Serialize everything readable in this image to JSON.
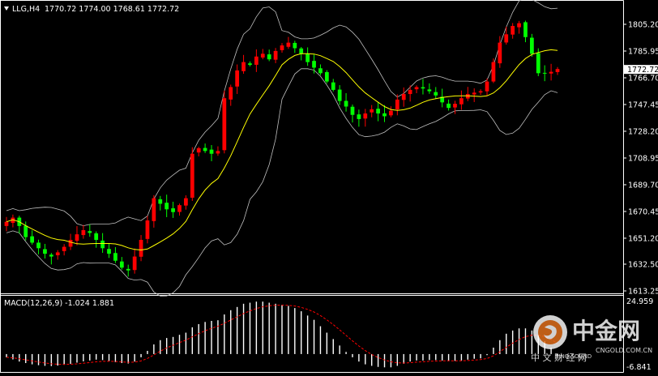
{
  "header": {
    "symbol": "LLG,H4",
    "ohlc": "1770.72 1774.00 1768.61 1772.72"
  },
  "price_axis": {
    "ticks": [
      "1805.20",
      "1785.95",
      "1766.70",
      "1747.45",
      "1728.20",
      "1708.95",
      "1689.70",
      "1670.45",
      "1651.20",
      "1632.50",
      "1613.25"
    ],
    "current_price": "1772.72"
  },
  "macd_panel": {
    "label": "MACD(12,26,9) -1.024 1.881",
    "axis_top": "24.959",
    "axis_bottom": "-6.841"
  },
  "watermark": {
    "brand": "中金网",
    "sub": "中 文 财 经 网",
    "url": "CNGOLD.COM.CN",
    "stamp": "SINO SOUND"
  },
  "colors": {
    "background": "#000000",
    "bull": "#00ff00",
    "bear": "#ff0000",
    "ma": "#ffff00",
    "bands": "#c0c0c0",
    "macd_hist": "#ffffff",
    "macd_signal": "#ff0000",
    "axis": "#ffffff"
  },
  "chart_data": {
    "type": "candlestick",
    "timeframe": "H4",
    "ylim": [
      1613.25,
      1815
    ],
    "close": [
      1663,
      1666,
      1660,
      1652,
      1648,
      1644,
      1640,
      1638,
      1641,
      1645,
      1650,
      1654,
      1657,
      1655,
      1650,
      1644,
      1640,
      1635,
      1630,
      1628,
      1638,
      1650,
      1664,
      1680,
      1676,
      1672,
      1670,
      1675,
      1680,
      1712,
      1716,
      1714,
      1712,
      1714,
      1752,
      1760,
      1772,
      1778,
      1776,
      1782,
      1784,
      1780,
      1786,
      1790,
      1792,
      1788,
      1784,
      1778,
      1774,
      1770,
      1764,
      1758,
      1750,
      1746,
      1740,
      1737,
      1741,
      1744,
      1741,
      1739,
      1743,
      1751,
      1755,
      1758,
      1760,
      1759,
      1757,
      1754,
      1749,
      1745,
      1748,
      1752,
      1755,
      1756,
      1757,
      1764,
      1778,
      1792,
      1798,
      1804,
      1806,
      1796,
      1784,
      1770,
      1770,
      1771,
      1773
    ],
    "macd_hist": [
      -1.5,
      -2.5,
      -3.5,
      -4.2,
      -4.8,
      -5.2,
      -5.5,
      -5.6,
      -5.4,
      -5.0,
      -4.6,
      -4.0,
      -3.4,
      -3.0,
      -2.6,
      -2.8,
      -3.2,
      -3.8,
      -4.2,
      -4.4,
      -3.5,
      -1.5,
      1.5,
      4.5,
      6.5,
      7.5,
      8.0,
      9.0,
      10.0,
      12.5,
      14.0,
      15.0,
      15.5,
      15.8,
      18.5,
      20.5,
      22.0,
      23.5,
      24.0,
      24.5,
      24.5,
      24.0,
      23.5,
      23.0,
      22.5,
      21.5,
      20.0,
      18.0,
      16.0,
      13.0,
      10.0,
      7.0,
      4.0,
      1.0,
      -1.5,
      -3.5,
      -4.8,
      -5.5,
      -6.0,
      -6.2,
      -6.2,
      -5.5,
      -4.5,
      -3.5,
      -3.0,
      -3.0,
      -2.8,
      -2.8,
      -3.0,
      -3.2,
      -3.2,
      -3.0,
      -2.6,
      -2.2,
      -2.0,
      -0.5,
      3.0,
      6.5,
      9.5,
      11.0,
      12.0,
      12.0,
      11.0,
      9.0,
      6.0,
      3.0,
      -1.0
    ]
  }
}
